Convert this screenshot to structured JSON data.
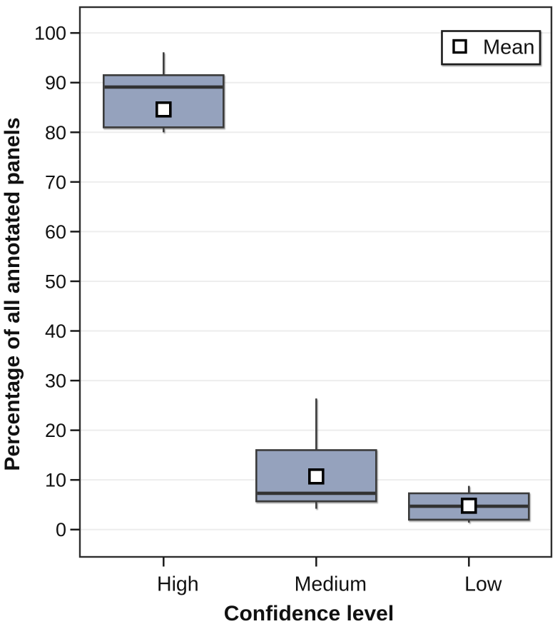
{
  "legend": {
    "label": "Mean",
    "position": "top-right",
    "marker": "open-square"
  },
  "chart_data": {
    "type": "box",
    "title": "",
    "xlabel": "Confidence level",
    "ylabel": "Percentage of all annotated panels",
    "categories": [
      "High",
      "Medium",
      "Low"
    ],
    "yticks": [
      0,
      10,
      20,
      30,
      40,
      50,
      60,
      70,
      80,
      90,
      100
    ],
    "ylim": [
      -5.5,
      105.2
    ],
    "grid": "horizontal",
    "legend_position": "top-right",
    "series": [
      {
        "category": "High",
        "whisker_low": 80.0,
        "q1": 81.0,
        "median": 89.1,
        "mean": 84.6,
        "q3": 91.5,
        "whisker_high": 96.1
      },
      {
        "category": "Medium",
        "whisker_low": 4.2,
        "q1": 5.7,
        "median": 7.3,
        "mean": 10.7,
        "q3": 16.0,
        "whisker_high": 26.4
      },
      {
        "category": "Low",
        "whisker_low": 1.4,
        "q1": 2.0,
        "median": 4.7,
        "mean": 4.8,
        "q3": 7.3,
        "whisker_high": 8.8
      }
    ],
    "colors": {
      "box_fill": "#95a2bd",
      "box_border": "#3b3b3b",
      "median": "#333333",
      "whisker": "#3b3b3b",
      "grid": "#ededed",
      "plot_border": "#2e2e2e",
      "mean_fill": "#ffffff",
      "mean_border": "#000000",
      "tick": "#1a1a1a",
      "text": "#111111",
      "background": "#ffffff"
    }
  }
}
